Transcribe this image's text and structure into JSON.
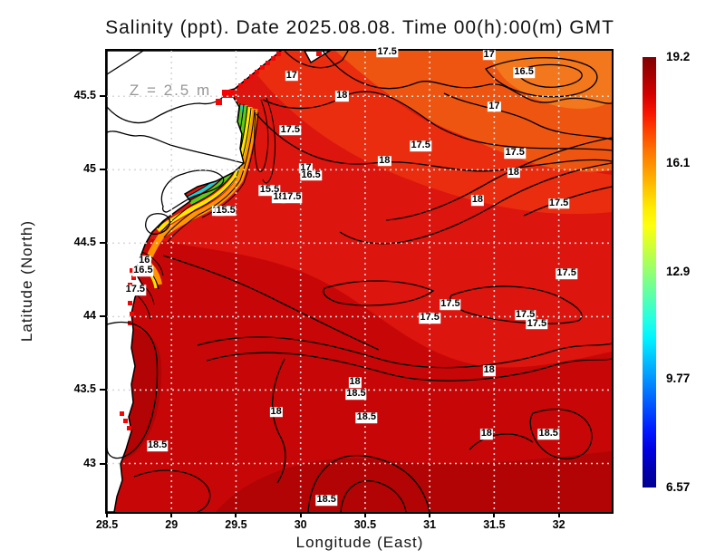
{
  "title": "Salinity (ppt). Date 2025.08.08. Time 00(h):00(m) GMT",
  "chart_data": {
    "type": "heatmap",
    "variable": "Salinity",
    "units": "ppt",
    "date": "2025.08.08",
    "time": "00(h):00(m) GMT",
    "depth_annotation": "Z = 2.5 m",
    "title": "Salinity (ppt). Date 2025.08.08. Time 00(h):00(m) GMT",
    "xlabel": "Longitude (East)",
    "ylabel": "Latitude (North)",
    "xlim": [
      28.5,
      32.41
    ],
    "ylim": [
      42.67,
      45.81
    ],
    "xticks": [
      28.5,
      29,
      29.5,
      30,
      30.5,
      31,
      31.5,
      32
    ],
    "yticks": [
      43,
      43.5,
      44,
      44.5,
      45,
      45.5
    ],
    "grid": true,
    "contour_interval": 0.5,
    "colorbar": {
      "min": 6.57,
      "max": 19.2,
      "ticks": [
        19.2,
        16.1,
        12.9,
        9.77,
        6.57
      ],
      "colormap": "jet",
      "colors": [
        "#800000",
        "#a80000",
        "#d40000",
        "#f81500",
        "#ff4500",
        "#ff7300",
        "#ff9c00",
        "#ffc400",
        "#ffe900",
        "#fdff0c",
        "#d4ff33",
        "#a8ff5e",
        "#7bff8a",
        "#4fffb6",
        "#23ffe2",
        "#00f4ff",
        "#00c8ff",
        "#009cff",
        "#0070ff",
        "#0044ff",
        "#0018ff",
        "#0000e0",
        "#0000b0",
        "#000090"
      ]
    },
    "contour_labels": [
      {
        "v": "17.5",
        "lon": 30.67,
        "lat": 45.8
      },
      {
        "v": "17",
        "lon": 31.46,
        "lat": 45.78
      },
      {
        "v": "16.5",
        "lon": 31.73,
        "lat": 45.66
      },
      {
        "v": "17",
        "lon": 29.93,
        "lat": 45.64
      },
      {
        "v": "18",
        "lon": 30.32,
        "lat": 45.5
      },
      {
        "v": "17",
        "lon": 31.5,
        "lat": 45.43
      },
      {
        "v": "17.5",
        "lon": 29.92,
        "lat": 45.27
      },
      {
        "v": "17.5",
        "lon": 30.93,
        "lat": 45.16
      },
      {
        "v": "17.5",
        "lon": 31.66,
        "lat": 45.11
      },
      {
        "v": "18",
        "lon": 30.65,
        "lat": 45.06
      },
      {
        "v": "17",
        "lon": 30.04,
        "lat": 45.01
      },
      {
        "v": "16.5",
        "lon": 30.08,
        "lat": 44.96
      },
      {
        "v": "18",
        "lon": 31.65,
        "lat": 44.98
      },
      {
        "v": "15.5",
        "lon": 29.76,
        "lat": 44.86
      },
      {
        "v": "18",
        "lon": 29.83,
        "lat": 44.81
      },
      {
        "v": "17.5",
        "lon": 29.93,
        "lat": 44.81
      },
      {
        "v": "15",
        "lon": 29.36,
        "lat": 44.72
      },
      {
        "v": "15.5",
        "lon": 29.42,
        "lat": 44.72
      },
      {
        "v": "18",
        "lon": 31.37,
        "lat": 44.79
      },
      {
        "v": "17.5",
        "lon": 32.0,
        "lat": 44.77
      },
      {
        "v": "16",
        "lon": 28.79,
        "lat": 44.38
      },
      {
        "v": "16.5",
        "lon": 28.78,
        "lat": 44.31
      },
      {
        "v": "17.5",
        "lon": 28.72,
        "lat": 44.18
      },
      {
        "v": "17.5",
        "lon": 32.06,
        "lat": 44.29
      },
      {
        "v": "17.5",
        "lon": 31.16,
        "lat": 44.08
      },
      {
        "v": "17.5",
        "lon": 31.0,
        "lat": 43.99
      },
      {
        "v": "17.5",
        "lon": 31.74,
        "lat": 44.01
      },
      {
        "v": "17.5",
        "lon": 31.83,
        "lat": 43.95
      },
      {
        "v": "18",
        "lon": 31.46,
        "lat": 43.63
      },
      {
        "v": "18",
        "lon": 30.42,
        "lat": 43.55
      },
      {
        "v": "18.5",
        "lon": 30.43,
        "lat": 43.47
      },
      {
        "v": "18.5",
        "lon": 30.51,
        "lat": 43.31
      },
      {
        "v": "18",
        "lon": 29.81,
        "lat": 43.35
      },
      {
        "v": "18.5",
        "lon": 28.89,
        "lat": 43.12
      },
      {
        "v": "18",
        "lon": 31.44,
        "lat": 43.2
      },
      {
        "v": "18.5",
        "lon": 31.92,
        "lat": 43.2
      },
      {
        "v": "18.5",
        "lon": 30.2,
        "lat": 42.75
      }
    ],
    "description": "Contoured sea-surface salinity field (mostly 16.5-18.5 ppt offshore) in the western Black Sea; a low-salinity Danube river plume (15-16 ppt, rainbow-colored bands) hugs the coast near the delta. Land is shown white with black coastline."
  }
}
